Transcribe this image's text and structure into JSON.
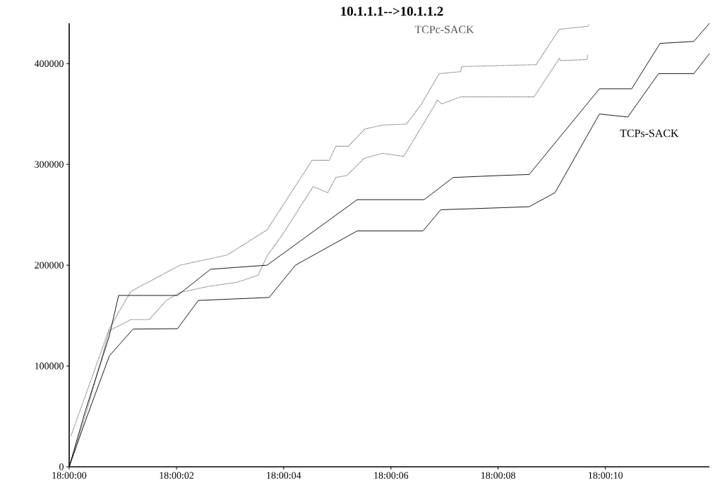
{
  "chart_data": {
    "type": "line",
    "title": "10.1.1.1-->10.1.1.2",
    "xlim": [
      18,
      18.003317
    ],
    "ylim": [
      0,
      440000
    ],
    "xticks": [
      {
        "value": 18,
        "label": "18:00:00"
      },
      {
        "value": 18.000556,
        "label": "18:00:02"
      },
      {
        "value": 18.001111,
        "label": "18:00:04"
      },
      {
        "value": 18.001667,
        "label": "18:00:06"
      },
      {
        "value": 18.002222,
        "label": "18:00:08"
      },
      {
        "value": 18.002778,
        "label": "18:00:10"
      }
    ],
    "yticks": [
      0,
      100000,
      200000,
      300000,
      400000
    ],
    "grid": false,
    "series": [
      {
        "name": "TCPc-SACK",
        "color": "#555555",
        "line_style": "dotted",
        "x": [
          18,
          18.000011,
          18.000208,
          18.000319,
          18.000575,
          18.000817,
          18.001025,
          18.001258,
          18.001347,
          18.001381,
          18.001447,
          18.001531,
          18.001622,
          18.001747,
          18.001822,
          18.001917,
          18.002028,
          18.002033,
          18.002419,
          18.002539,
          18.002686,
          18.002694
        ],
        "values": [
          31000,
          31500,
          137000,
          174000,
          200000,
          210000,
          235000,
          304000,
          304000,
          318000,
          318000,
          335000,
          339000,
          340000,
          359000,
          390000,
          392000,
          397000,
          399000,
          434000,
          437000,
          439000
        ]
      },
      {
        "color": "#555555",
        "line_style": "dotted",
        "x": [
          18,
          18.000083,
          18.000208,
          18.000319,
          18.000414,
          18.000503,
          18.000575,
          18.000722,
          18.000869,
          18.000978,
          18.001025,
          18.001111,
          18.001264,
          18.001339,
          18.001381,
          18.001439,
          18.001528,
          18.001622,
          18.001733,
          18.001894,
          18.001906,
          18.001931,
          18.002028,
          18.002408,
          18.002539,
          18.002547,
          18.002683,
          18.002686
        ],
        "values": [
          0,
          50000,
          135000,
          146000,
          146000,
          165000,
          173000,
          179000,
          183000,
          190000,
          209000,
          232000,
          278000,
          272000,
          287000,
          289000,
          306000,
          311000,
          308000,
          359000,
          364000,
          360000,
          367000,
          367000,
          405000,
          403000,
          404000,
          409000
        ]
      },
      {
        "color": "#000000",
        "line_style": "solid",
        "x": [
          18,
          18.000083,
          18.000208,
          18.000256,
          18.000561,
          18.000733,
          18.001025,
          18.001492,
          18.001839,
          18.001989,
          18.002236,
          18.002383,
          18.002747,
          18.002914,
          18.003061,
          18.003236,
          18.003317
        ],
        "values": [
          0,
          55000,
          130000,
          170000,
          170000,
          196000,
          200000,
          265000,
          265000,
          287000,
          289000,
          290000,
          375000,
          375000,
          420000,
          422000,
          440000
        ]
      },
      {
        "name": "TCPs-SACK",
        "color": "#000000",
        "line_style": "solid",
        "x": [
          18,
          18.000083,
          18.000208,
          18.000331,
          18.000561,
          18.000669,
          18.001036,
          18.001172,
          18.001492,
          18.001833,
          18.001925,
          18.002236,
          18.002383,
          18.002517,
          18.002747,
          18.002894,
          18.003053,
          18.003236,
          18.003317
        ],
        "values": [
          0,
          45000,
          110000,
          136600,
          137000,
          165000,
          168000,
          200000,
          234000,
          234000,
          255000,
          257000,
          258000,
          272000,
          350000,
          347000,
          390000,
          390000,
          410000
        ]
      }
    ]
  }
}
